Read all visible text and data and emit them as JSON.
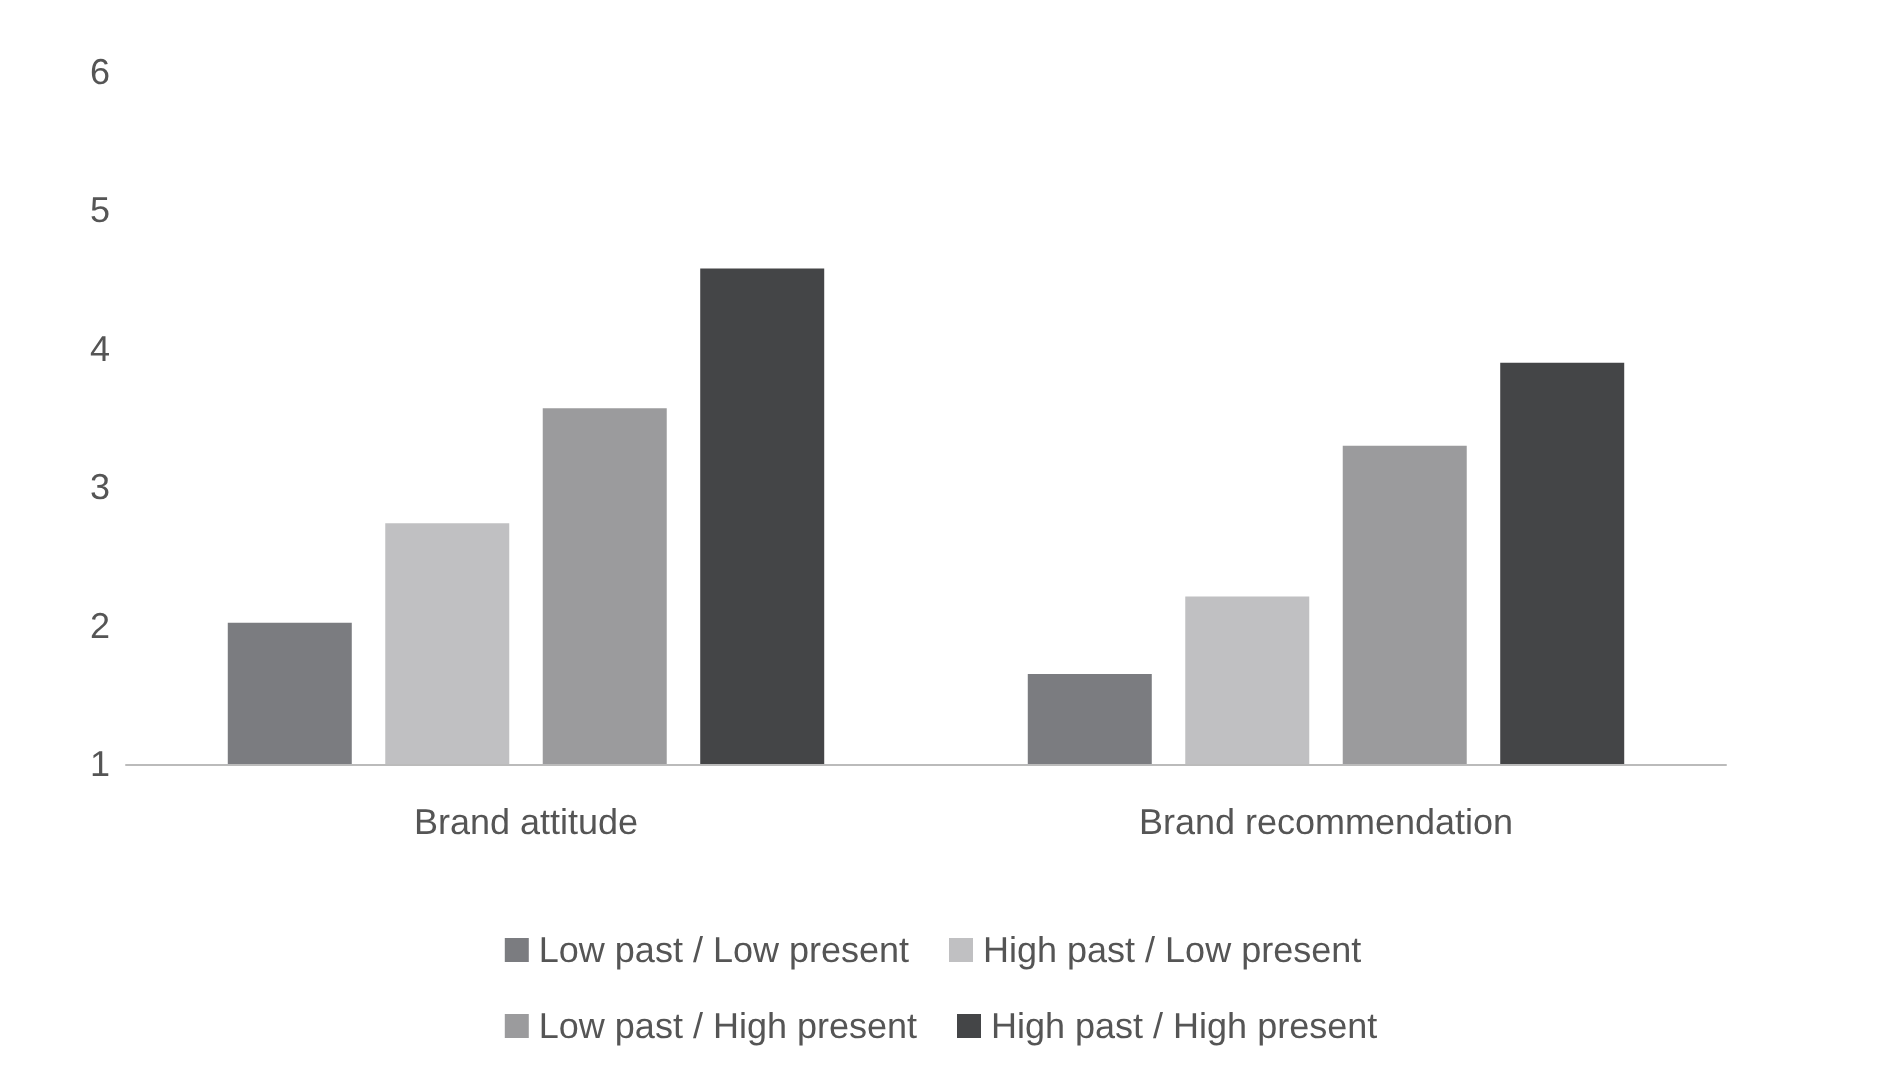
{
  "chart_data": {
    "type": "bar",
    "categories": [
      "Brand attitude",
      "Brand recommendation"
    ],
    "series": [
      {
        "name": "Low past / Low present",
        "color": "#7b7c80",
        "values": [
          2.02,
          1.65
        ]
      },
      {
        "name": "High past / Low present",
        "color": "#c0c0c2",
        "values": [
          2.74,
          2.21
        ]
      },
      {
        "name": "Low past / High present",
        "color": "#9b9b9d",
        "values": [
          3.57,
          3.3
        ]
      },
      {
        "name": "High past / High present",
        "color": "#444547",
        "values": [
          4.58,
          3.9
        ]
      }
    ],
    "ylim": [
      1,
      6
    ],
    "yticks": [
      1,
      2,
      3,
      4,
      5,
      6
    ],
    "grid": false,
    "legend": "bottom"
  }
}
